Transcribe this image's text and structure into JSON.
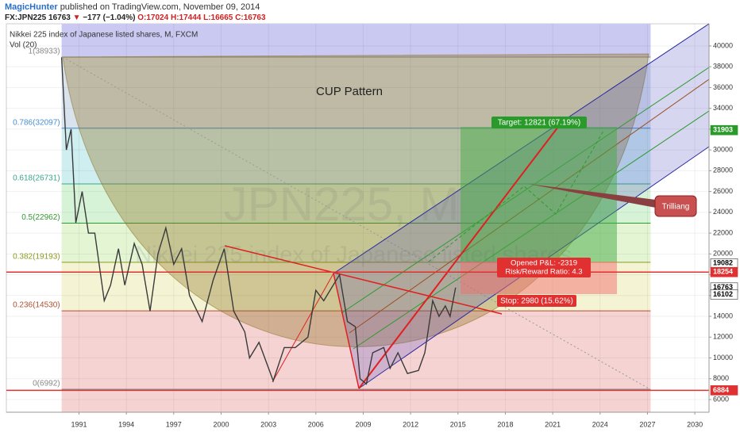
{
  "header": {
    "author": "MagicHunter",
    "published": "published on TradingView.com, November 09, 2014",
    "quote": [
      "FX:JPN225",
      "16763",
      "▼",
      "−177 (−1.04%)",
      "O:17024",
      "H:17444",
      "L:16665",
      "C:16763"
    ]
  },
  "chart_data": {
    "type": "line",
    "title": "Nikkei 225 index of Japanese listed shares, M, FXCM",
    "subtitle": "Vol (20)",
    "watermark_title": "JPN225, M",
    "watermark_subtitle": "Nikkei 225 index of Japanese listed shares",
    "x": [
      1989.9,
      1990.2,
      1990.5,
      1990.8,
      1991.2,
      1991.6,
      1992.0,
      1992.6,
      1993.0,
      1993.5,
      1993.9,
      1994.5,
      1995.0,
      1995.5,
      1996.0,
      1996.5,
      1997.0,
      1997.5,
      1998.0,
      1998.8,
      1999.5,
      2000.2,
      2000.8,
      2001.5,
      2001.8,
      2002.4,
      2003.3,
      2004.0,
      2004.7,
      2005.5,
      2006.0,
      2006.5,
      2007.5,
      2008.0,
      2008.5,
      2008.8,
      2009.2,
      2009.6,
      2010.3,
      2010.7,
      2011.2,
      2011.8,
      2012.5,
      2012.9,
      2013.4,
      2013.8,
      2014.2,
      2014.5,
      2014.85
    ],
    "series": [
      {
        "color": "#3a3a3a",
        "values": [
          38900,
          30000,
          32000,
          23000,
          26000,
          22000,
          22000,
          15500,
          17000,
          20500,
          17000,
          21000,
          19000,
          14500,
          20000,
          22500,
          19000,
          20500,
          16000,
          13500,
          17500,
          20500,
          14500,
          12500,
          10000,
          11500,
          7800,
          11000,
          11000,
          12000,
          16500,
          15500,
          18000,
          13500,
          13000,
          8000,
          7500,
          10500,
          11000,
          9000,
          10500,
          8500,
          8800,
          10500,
          15500,
          14000,
          15000,
          14000,
          16763
        ]
      }
    ],
    "xlim": [
      1986.4,
      2030.9
    ],
    "xticks": [
      1991,
      1994,
      1997,
      2000,
      2003,
      2006,
      2009,
      2012,
      2015,
      2018,
      2021,
      2024,
      2027,
      2030
    ],
    "ylim": [
      4780,
      42130
    ],
    "yticks": [
      6000,
      8000,
      10000,
      12000,
      14000,
      16000,
      18000,
      20000,
      22000,
      24000,
      26000,
      28000,
      30000,
      32000,
      34000,
      36000,
      38000,
      40000
    ],
    "grid": true,
    "fib_xrange": [
      1989.9,
      2027.2
    ],
    "fib_levels": [
      {
        "label": "1(38933)",
        "value": 38933,
        "color": "#888888",
        "fill": "#c9c9f2"
      },
      {
        "label": "0.786(32097)",
        "value": 32097,
        "color": "#4a8fd0",
        "fill": "#d9e3ee"
      },
      {
        "label": "0.618(26731)",
        "value": 26731,
        "color": "#3aa58a",
        "fill": "#cfeef0"
      },
      {
        "label": "0.5(22962)",
        "value": 22962,
        "color": "#2f9a2f",
        "fill": "#d6f3d8"
      },
      {
        "label": "0.382(19193)",
        "value": 19193,
        "color": "#8a9a20",
        "fill": "#e3f5d3"
      },
      {
        "label": "0.236(14530)",
        "value": 14530,
        "color": "#b05030",
        "fill": "#f4f4d4"
      },
      {
        "label": "0(6992)",
        "value": 6992,
        "color": "#888888",
        "fill": "#f6d3d3"
      }
    ],
    "price_labels": [
      {
        "value": 31903,
        "color": "#2a9a2a",
        "text_color": "#ffffff",
        "line": false
      },
      {
        "value": 19082,
        "color": "#ffffff",
        "text_color": "#000000",
        "line": false
      },
      {
        "value": 18254,
        "color": "#e03030",
        "text_color": "#ffffff",
        "line": true
      },
      {
        "value": 16763,
        "color": "#ffffff",
        "text_color": "#000000",
        "line": false
      },
      {
        "value": 16102,
        "color": "#ffffff",
        "text_color": "#000000",
        "line": false
      },
      {
        "value": 6884,
        "color": "#e03030",
        "text_color": "#ffffff",
        "line": true
      }
    ],
    "annotations": {
      "cup": "CUP Pattern",
      "target": "Target: 12821 (67.19%)",
      "pnl": "Opened P&L: -2319",
      "rr": "Risk/Reward Ratio: 4.3",
      "stop": "Stop: 2980 (15.62%)",
      "trilliang": "Trilliang"
    }
  }
}
